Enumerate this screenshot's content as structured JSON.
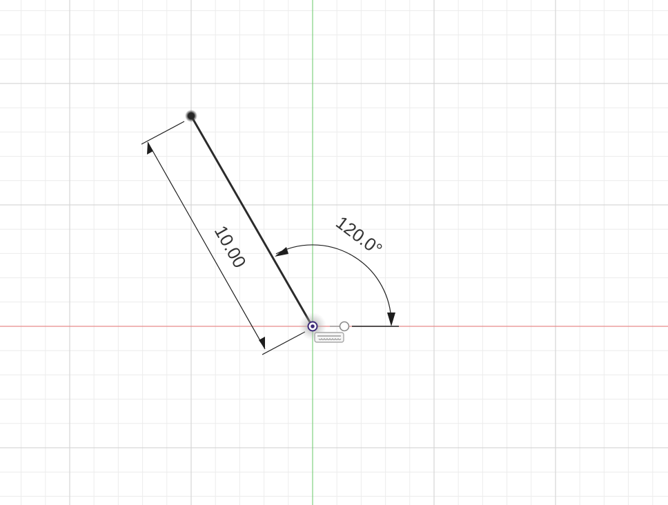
{
  "sketch": {
    "line_length_label": "10.00",
    "angle_label": "120.0°"
  },
  "colors": {
    "background": "#ffffff",
    "grid_minor": "#ececec",
    "grid_major": "#d6d6d6",
    "x_axis": "#e88a8a",
    "y_axis": "#7ed07e",
    "sketch_line": "#2b2b2b",
    "dimension_line": "#1e1e1e",
    "origin_point": "#3d2a78",
    "dimension_text": "#333333"
  },
  "icons": {
    "origin": "origin-point-icon",
    "endpoint": "sketch-point-icon",
    "constraint": "horizontal-constraint-icon"
  }
}
